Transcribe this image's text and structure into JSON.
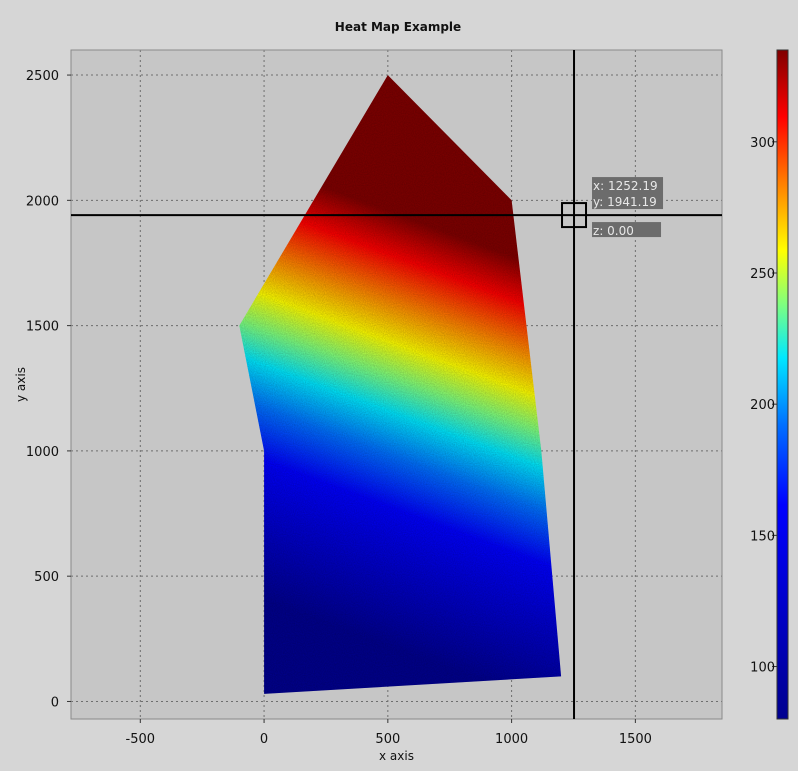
{
  "chart_data": {
    "type": "heatmap",
    "title": "Heat Map Example",
    "xlabel": "x axis",
    "ylabel": "y axis",
    "xlim": [
      -780,
      1850
    ],
    "ylim": [
      -70,
      2600
    ],
    "x_ticks": [
      -500,
      0,
      500,
      1000,
      1500
    ],
    "y_ticks": [
      0,
      500,
      1000,
      1500,
      2000,
      2500
    ],
    "grid": true,
    "colormap": "jet",
    "colorbar": {
      "range": [
        80,
        335
      ],
      "ticks": [
        100,
        150,
        200,
        250,
        300
      ]
    },
    "region_polygon": [
      [
        -100,
        1500
      ],
      [
        500,
        2500
      ],
      [
        1000,
        2000
      ],
      [
        1120,
        1000
      ],
      [
        1200,
        100
      ],
      [
        0,
        30
      ],
      [
        0,
        1000
      ]
    ],
    "crosshair": {
      "x": 1252.19,
      "y": 1941.19,
      "z": 0.0
    },
    "readout": {
      "x_text": "x: 1252.19",
      "y_text": "y: 1941.19",
      "z_text": "z: 0.00"
    },
    "colors": {
      "plot_background": "#c6c6c6",
      "page_background": "#d6d6d6",
      "grid": "#6e6e6e",
      "crosshair": "#000000",
      "readout_background": "#6c6c6c"
    }
  }
}
